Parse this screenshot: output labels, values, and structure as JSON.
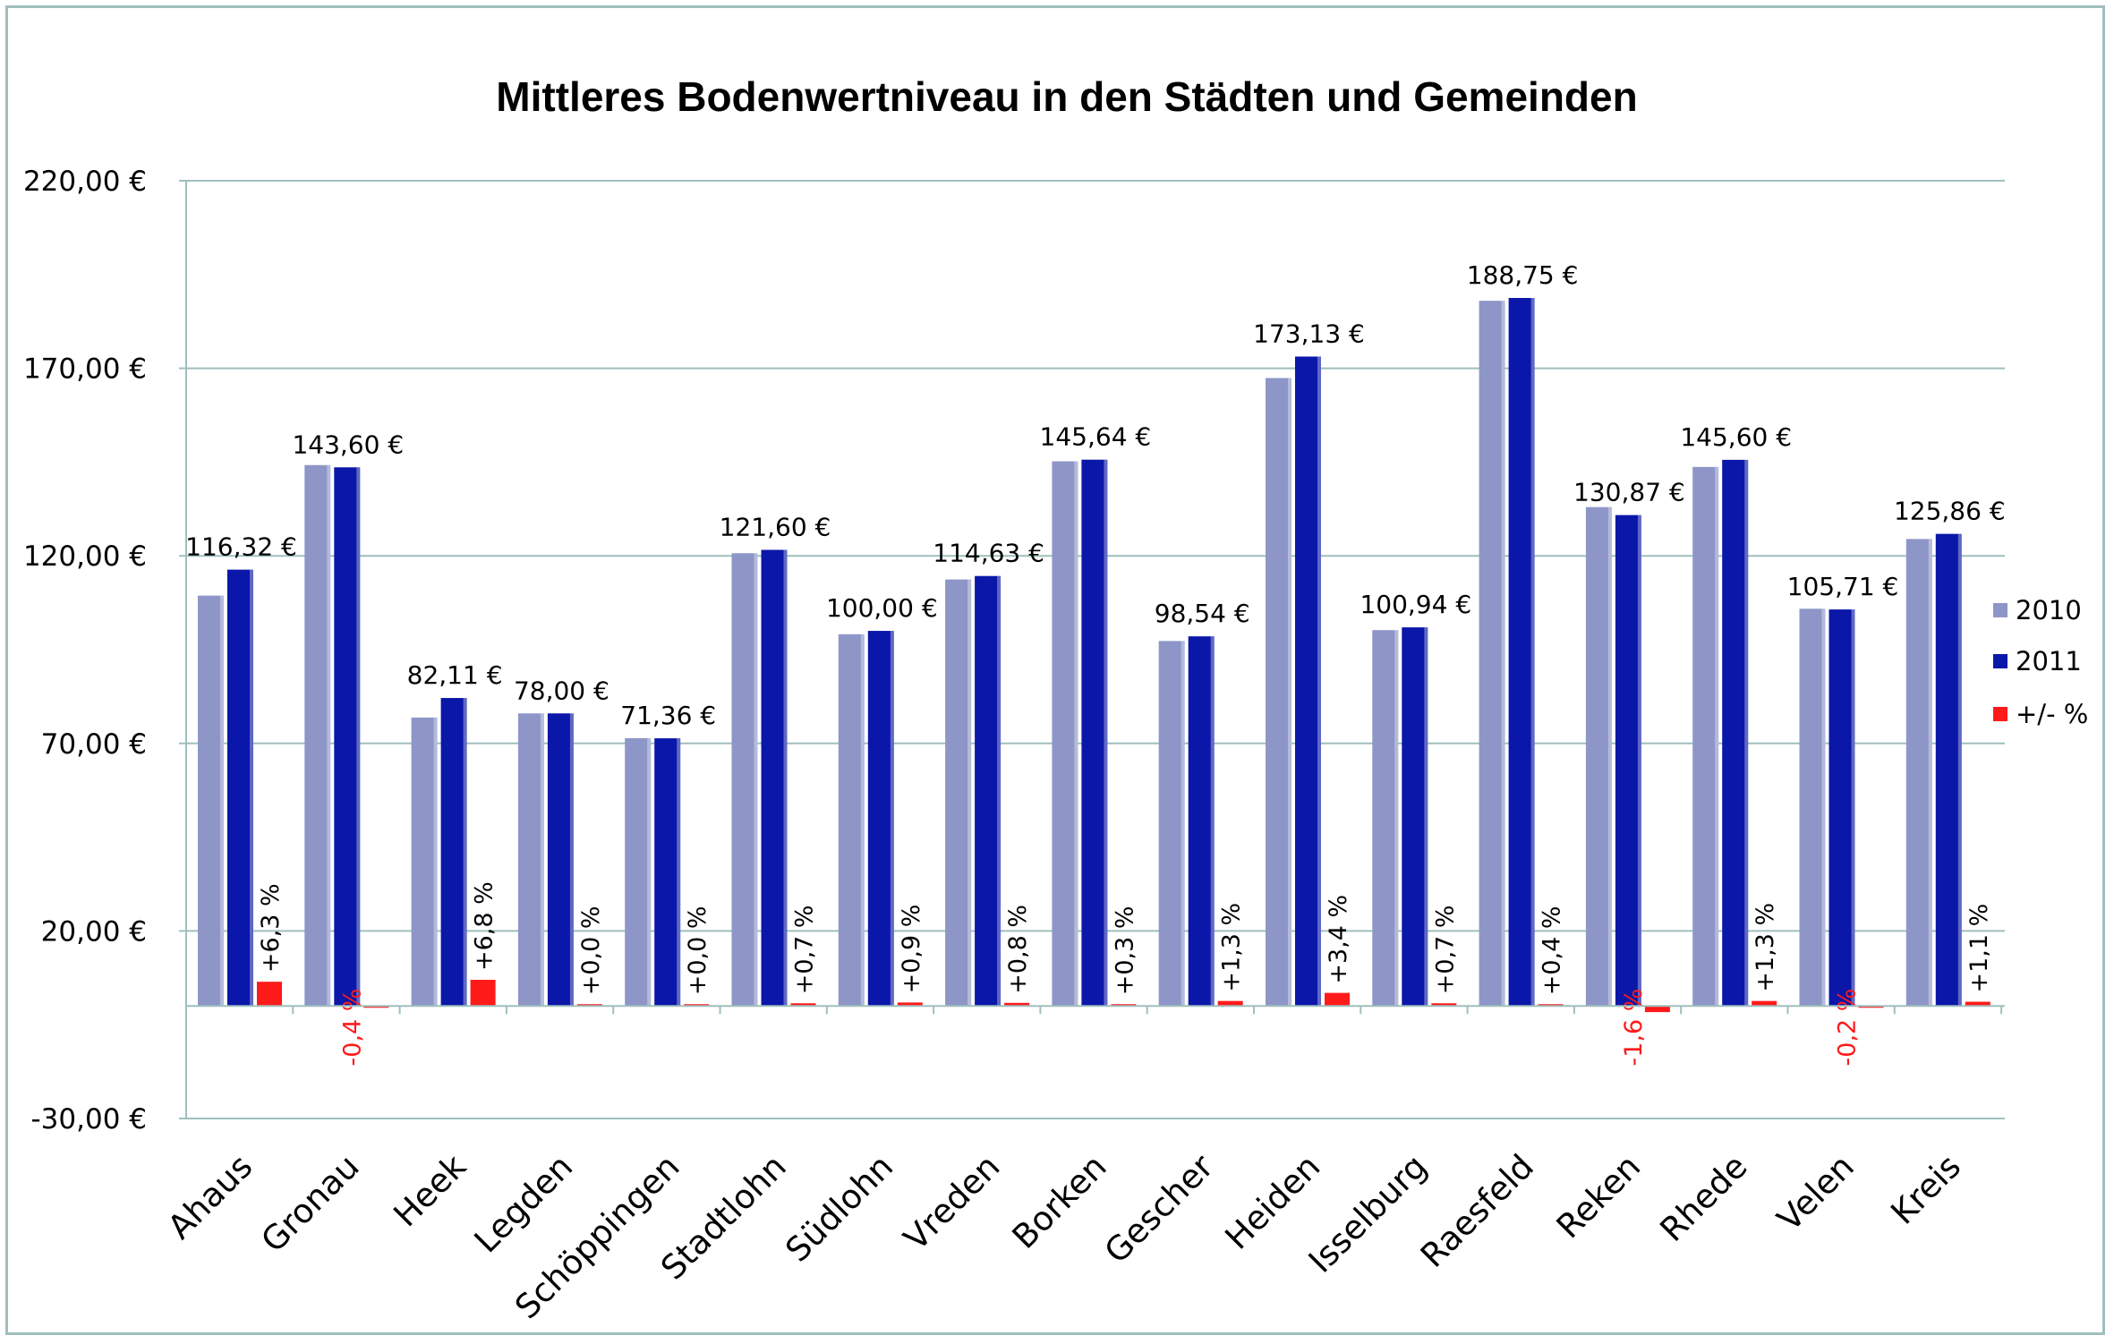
{
  "chart_data": {
    "type": "bar",
    "title": "Mittleres Bodenwertniveau in den Städten und Gemeinden",
    "xlabel": "",
    "ylabel": "",
    "ylim": [
      -30,
      220
    ],
    "y_ticks": [
      "220,00 €",
      "170,00 €",
      "120,00 €",
      "70,00 €",
      "20,00 €",
      "-30,00 €"
    ],
    "y_tick_values": [
      220,
      170,
      120,
      70,
      20,
      -30
    ],
    "grid": true,
    "legend_position": "right",
    "categories": [
      "Ahaus",
      "Gronau",
      "Heek",
      "Legden",
      "Schöppingen",
      "Stadtlohn",
      "Südlohn",
      "Vreden",
      "Borken",
      "Gescher",
      "Heiden",
      "Isselburg",
      "Raesfeld",
      "Reken",
      "Rhede",
      "Velen",
      "Kreis"
    ],
    "series": [
      {
        "name": "2010",
        "color": "#8e96c8",
        "values": [
          109.4,
          144.2,
          76.9,
          78.0,
          71.4,
          120.7,
          99.1,
          113.7,
          145.2,
          97.3,
          167.4,
          100.2,
          188.0,
          133.0,
          143.7,
          105.9,
          124.5
        ]
      },
      {
        "name": "2011",
        "color": "#0a17a8",
        "values": [
          116.32,
          143.6,
          82.11,
          78.0,
          71.36,
          121.6,
          100.0,
          114.63,
          145.64,
          98.54,
          173.13,
          100.94,
          188.75,
          130.87,
          145.6,
          105.71,
          125.86
        ]
      },
      {
        "name": "+/- %",
        "color": "#ff1a1a",
        "values": [
          6.3,
          -0.4,
          6.8,
          0.0,
          0.0,
          0.7,
          0.9,
          0.8,
          0.3,
          1.3,
          3.4,
          0.7,
          0.4,
          -1.6,
          1.3,
          -0.2,
          1.1
        ]
      }
    ],
    "value_labels_2011": [
      "116,32 €",
      "143,60 €",
      "82,11 €",
      "78,00 €",
      "71,36 €",
      "121,60 €",
      "100,00 €",
      "114,63 €",
      "145,64 €",
      "98,54 €",
      "173,13 €",
      "100,94 €",
      "188,75 €",
      "130,87 €",
      "145,60 €",
      "105,71 €",
      "125,86 €"
    ],
    "percent_labels": [
      "+6,3 %",
      "-0,4 %",
      "+6,8 %",
      "+0,0 %",
      "+0,0 %",
      "+0,7 %",
      "+0,9 %",
      "+0,8 %",
      "+0,3 %",
      "+1,3 %",
      "+3,4 %",
      "+0,7 %",
      "+0,4 %",
      "-1,6 %",
      "+1,3 %",
      "-0,2 %",
      "+1,1 %"
    ],
    "negative_label_color": "#ff1a1a",
    "grid_color": "#9fbfbd"
  }
}
